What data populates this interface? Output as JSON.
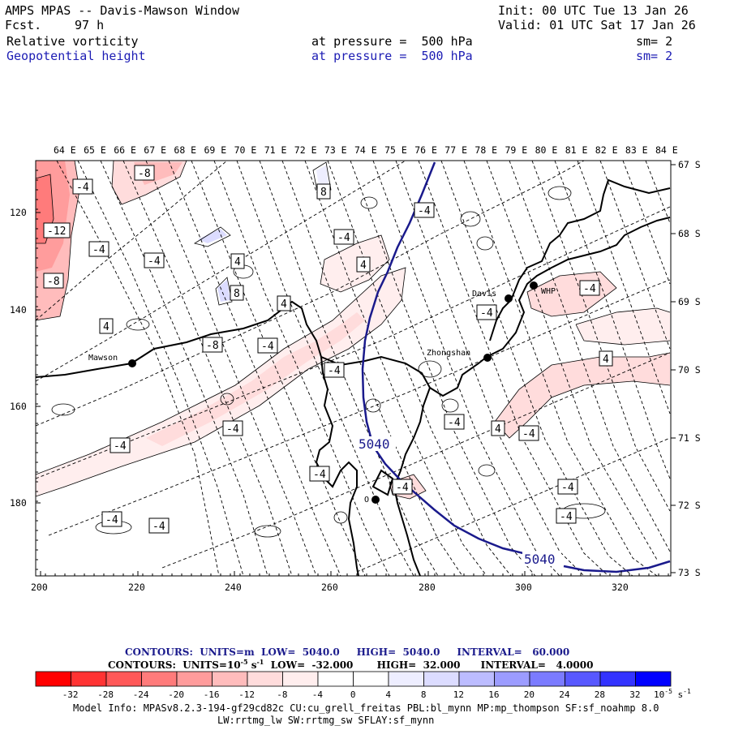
{
  "header": {
    "title": "AMPS MPAS -- Davis-Mawson Window",
    "forecast_label": "Fcst.",
    "forecast_hours": "97 h",
    "init": "Init: 00 UTC Tue 13 Jan 26",
    "valid": "Valid: 01 UTC Sat 17 Jan 26",
    "field1_name": "Relative vorticity",
    "field1_level": "at pressure =  500 hPa",
    "field1_smooth": "sm= 2",
    "field2_name": "Geopotential height",
    "field2_level": "at pressure =  500 hPa",
    "field2_smooth": "sm= 2"
  },
  "map": {
    "top_longitudes": [
      "64 E",
      "65 E",
      "66 E",
      "67 E",
      "68 E",
      "69 E",
      "70 E",
      "71 E",
      "72 E",
      "73 E",
      "74 E",
      "75 E",
      "76 E",
      "77 E",
      "78 E",
      "79 E",
      "80 E",
      "81 E",
      "82 E",
      "83 E",
      "84 E"
    ],
    "right_latitudes": [
      "67 S",
      "68 S",
      "69 S",
      "70 S",
      "71 S",
      "72 S",
      "73 S"
    ],
    "left_ticks": [
      "120",
      "140",
      "160",
      "180"
    ],
    "bottom_ticks": [
      "200",
      "220",
      "240",
      "260",
      "280",
      "300",
      "320"
    ],
    "stations": [
      {
        "name": "Mawson"
      },
      {
        "name": "Davis"
      },
      {
        "name": "WHP"
      },
      {
        "name": "Zhongshan"
      },
      {
        "name": "O"
      }
    ],
    "height_contour_labels": [
      "5040",
      "5040"
    ],
    "vorticity_labels": [
      "-4",
      "-8",
      "-8",
      "-12",
      "-4",
      "-4",
      "4",
      "4",
      "8",
      "8",
      "-8",
      "-4",
      "4",
      "-4",
      "4",
      "-4",
      "-4",
      "-4",
      "-4",
      "-4",
      "-4",
      "-4",
      "-4",
      "4",
      "-4",
      "-4",
      "4",
      "-4",
      "-4",
      "-4",
      "-4"
    ]
  },
  "footer": {
    "contour1": "CONTOURS:  UNITS=m  LOW=  5040.0     HIGH=  5040.0     INTERVAL=   60.000",
    "contour2": "CONTOURS:  UNITS=10",
    "contour2_exp": "-5",
    "contour2_unit": " s",
    "contour2_unit_exp": "-1",
    "contour2_rest": "  LOW=  -32.000       HIGH=  32.000      INTERVAL=   4.0000",
    "colorbar_labels": [
      "-32",
      "-28",
      "-24",
      "-20",
      "-16",
      "-12",
      "-8",
      "-4",
      "0",
      "4",
      "8",
      "12",
      "16",
      "20",
      "24",
      "28",
      "32"
    ],
    "colorbar_colors": [
      "#ff0000",
      "#ff3333",
      "#ff5858",
      "#ff7b7b",
      "#ff9c9c",
      "#ffbcbc",
      "#ffdcdc",
      "#ffeeee",
      "#ffffff",
      "#ffffff",
      "#eeeeff",
      "#dcdcff",
      "#bcbcff",
      "#9c9cff",
      "#7b7bff",
      "#5858ff",
      "#3333ff",
      "#0000ff"
    ],
    "colorbar_units": "10",
    "colorbar_units_exp": "-5",
    "colorbar_units_tail": " s",
    "colorbar_units_tail_exp": "-1",
    "model_info": "Model Info: MPASv8.2.3-194-gf29cd82c CU:cu_grell_freitas PBL:bl_mynn MP:mp_thompson SF:sf_noahmp 8.0",
    "model_info2": "LW:rrtmg_lw SW:rrtmg_sw SFLAY:sf_mynn"
  },
  "colors": {
    "height_contour": "#1a1a8c",
    "station_dot": "#000000"
  }
}
